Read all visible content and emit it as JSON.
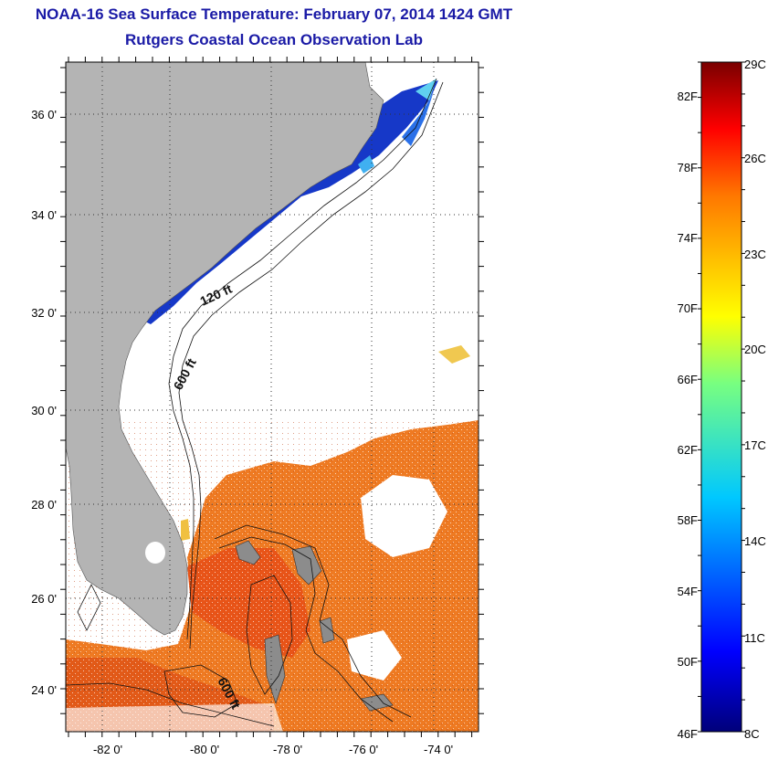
{
  "title": "NOAA-16 Sea Surface Temperature:  February 07, 2014 1424 GMT",
  "subtitle": "Rutgers Coastal Ocean Observation Lab",
  "map": {
    "lat_ticks": [
      "36 0'",
      "34 0'",
      "32 0'",
      "30 0'",
      "28 0'",
      "26 0'",
      "24 0'"
    ],
    "lon_ticks": [
      "-82 0'",
      "-80 0'",
      "-78 0'",
      "-76 0'",
      "-74 0'"
    ],
    "contour_labels": [
      "120 ft",
      "600 ft",
      "600 ft"
    ],
    "colors": {
      "land": "#b4b4b4",
      "ocean_no_data": "#ffffff",
      "cold_water": "#1030c8",
      "warm_water": "#f07820"
    }
  },
  "colorbar": {
    "fahrenheit_labels": [
      "82F",
      "78F",
      "74F",
      "70F",
      "66F",
      "62F",
      "58F",
      "54F",
      "50F",
      "46F"
    ],
    "celsius_labels": [
      "29C",
      "26C",
      "23C",
      "20C",
      "17C",
      "14C",
      "11C",
      "8C"
    ],
    "range_c": [
      8,
      29
    ],
    "range_f": [
      46,
      84
    ]
  }
}
